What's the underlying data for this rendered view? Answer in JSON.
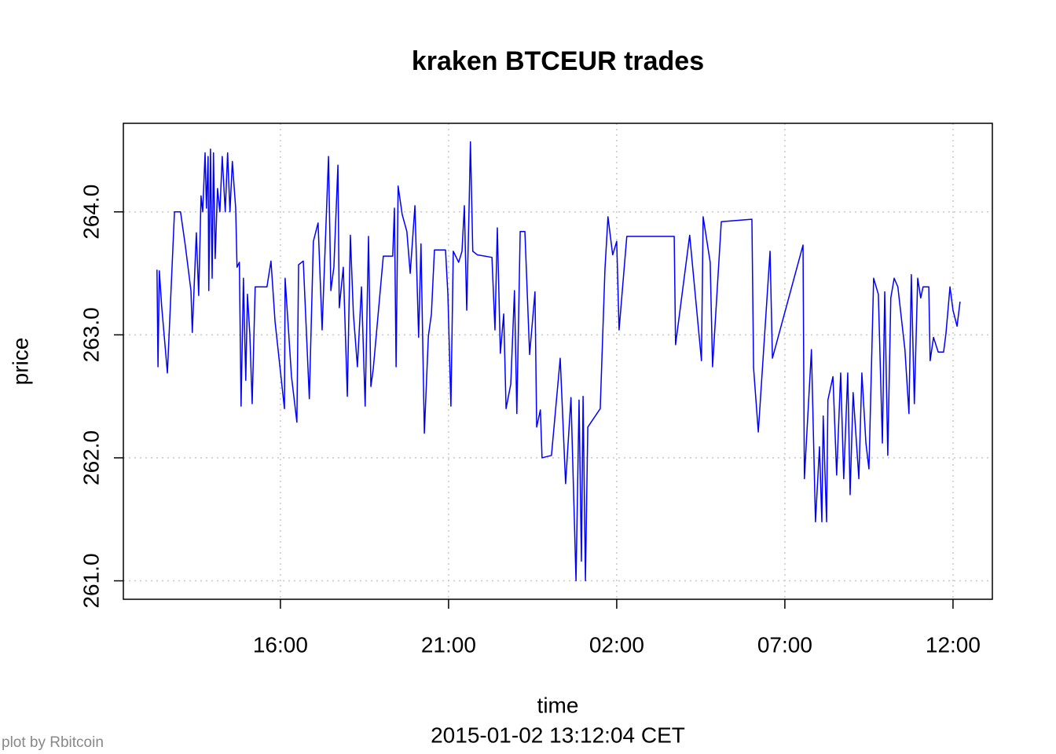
{
  "chart_data": {
    "type": "line",
    "title": "kraken BTCEUR trades",
    "x_label": "time",
    "y_label": "price",
    "subtitle": "2015-01-02 13:12:04 CET",
    "footer": "plot by Rbitcoin",
    "color": "#0000ff",
    "grid": true,
    "xlim": [
      11.33,
      37.17
    ],
    "ylim": [
      260.85,
      264.72
    ],
    "xticks": [
      {
        "value": 16,
        "label": "16:00"
      },
      {
        "value": 21,
        "label": "21:00"
      },
      {
        "value": 26,
        "label": "02:00"
      },
      {
        "value": 31,
        "label": "07:00"
      },
      {
        "value": 36,
        "label": "12:00"
      }
    ],
    "yticks": [
      {
        "value": 261,
        "label": "261.0"
      },
      {
        "value": 262,
        "label": "262.0"
      },
      {
        "value": 263,
        "label": "263.0"
      },
      {
        "value": 264,
        "label": "264.0"
      }
    ],
    "x": [
      12.33,
      12.36,
      12.4,
      12.47,
      12.64,
      12.85,
      13.03,
      13.17,
      13.34,
      13.38,
      13.5,
      13.57,
      13.64,
      13.69,
      13.76,
      13.8,
      13.85,
      13.87,
      13.92,
      13.97,
      14.01,
      14.06,
      14.13,
      14.2,
      14.27,
      14.36,
      14.43,
      14.5,
      14.57,
      14.67,
      14.71,
      14.78,
      14.83,
      14.9,
      14.97,
      15.02,
      15.09,
      15.16,
      15.25,
      15.6,
      15.72,
      15.84,
      16.12,
      16.14,
      16.33,
      16.49,
      16.54,
      16.68,
      16.86,
      16.98,
      17.12,
      17.24,
      17.43,
      17.5,
      17.59,
      17.71,
      17.75,
      17.87,
      17.99,
      18.08,
      18.17,
      18.29,
      18.41,
      18.52,
      18.62,
      18.69,
      18.76,
      19.06,
      19.34,
      19.39,
      19.44,
      19.5,
      19.62,
      19.76,
      19.86,
      20.0,
      20.11,
      20.18,
      20.28,
      20.4,
      20.49,
      20.58,
      20.91,
      20.98,
      21.07,
      21.14,
      21.3,
      21.4,
      21.47,
      21.54,
      21.61,
      21.65,
      21.72,
      21.86,
      22.29,
      22.38,
      22.45,
      22.54,
      22.64,
      22.71,
      22.85,
      22.96,
      23.03,
      23.13,
      23.27,
      23.41,
      23.57,
      23.62,
      23.73,
      23.78,
      24.06,
      24.32,
      24.48,
      24.64,
      24.79,
      24.88,
      24.95,
      25.0,
      25.07,
      25.14,
      25.51,
      25.65,
      25.74,
      25.88,
      26.0,
      26.07,
      26.3,
      27.71,
      27.75,
      28.17,
      28.52,
      28.57,
      28.78,
      28.85,
      29.11,
      30.02,
      30.07,
      30.21,
      30.56,
      30.63,
      31.54,
      31.58,
      31.79,
      31.91,
      32.03,
      32.1,
      32.14,
      32.24,
      32.28,
      32.43,
      32.54,
      32.66,
      32.75,
      32.87,
      32.94,
      33.03,
      33.2,
      33.29,
      33.41,
      33.5,
      33.64,
      33.78,
      33.9,
      33.97,
      34.06,
      34.15,
      34.25,
      34.36,
      34.57,
      34.69,
      34.76,
      34.85,
      34.95,
      35.04,
      35.11,
      35.28,
      35.32,
      35.42,
      35.56,
      35.72,
      35.79,
      35.91,
      36.0,
      36.12,
      36.21
    ],
    "values": [
      263.53,
      262.74,
      263.52,
      263.23,
      262.69,
      264.0,
      264.0,
      263.73,
      263.36,
      263.02,
      263.83,
      263.32,
      264.13,
      264.0,
      264.48,
      264.03,
      264.45,
      263.36,
      264.51,
      263.46,
      264.48,
      263.62,
      264.19,
      264.0,
      264.45,
      264.0,
      264.48,
      264.0,
      264.41,
      264.03,
      263.55,
      263.59,
      262.42,
      263.46,
      262.63,
      263.33,
      263.01,
      262.44,
      263.39,
      263.39,
      263.6,
      263.11,
      262.4,
      263.46,
      262.66,
      262.29,
      263.57,
      263.6,
      262.48,
      263.76,
      263.91,
      263.04,
      264.45,
      263.36,
      263.55,
      264.38,
      263.22,
      263.55,
      262.5,
      263.81,
      263.17,
      262.74,
      263.39,
      262.42,
      263.8,
      262.58,
      262.72,
      263.64,
      263.64,
      264.03,
      262.74,
      264.21,
      263.98,
      263.84,
      263.5,
      264.05,
      262.98,
      263.74,
      262.2,
      262.99,
      263.17,
      263.69,
      263.69,
      263.33,
      262.42,
      263.68,
      263.59,
      263.68,
      264.05,
      263.2,
      264.03,
      264.57,
      263.68,
      263.65,
      263.63,
      263.04,
      263.87,
      262.85,
      263.17,
      262.4,
      262.6,
      263.36,
      262.36,
      263.84,
      263.84,
      262.84,
      263.35,
      262.25,
      262.39,
      262.0,
      262.02,
      262.81,
      261.79,
      262.49,
      261.0,
      262.47,
      261.16,
      262.5,
      261.0,
      262.25,
      262.4,
      263.53,
      263.96,
      263.65,
      263.76,
      263.04,
      263.8,
      263.8,
      262.92,
      263.81,
      262.79,
      263.96,
      263.59,
      262.74,
      263.92,
      263.94,
      262.73,
      262.21,
      263.68,
      262.81,
      263.73,
      261.83,
      262.88,
      261.48,
      262.09,
      261.48,
      262.34,
      261.48,
      262.47,
      262.66,
      261.86,
      262.69,
      261.83,
      262.69,
      261.7,
      262.53,
      261.83,
      262.69,
      262.12,
      261.91,
      263.46,
      263.33,
      262.12,
      263.35,
      262.02,
      263.3,
      263.46,
      263.39,
      262.88,
      262.36,
      263.49,
      262.44,
      263.46,
      263.3,
      263.39,
      263.39,
      262.79,
      262.98,
      262.86,
      262.86,
      263.01,
      263.39,
      263.2,
      263.07,
      263.27
    ]
  }
}
